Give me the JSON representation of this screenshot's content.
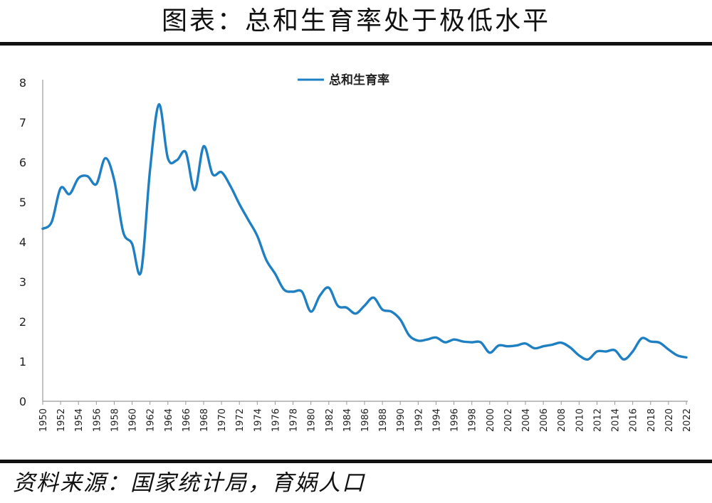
{
  "title": "图表：总和生育率处于极低水平",
  "source": "资料来源：国家统计局，育娲人口",
  "colors": {
    "line": "#1f7fc3",
    "axis": "#999999",
    "rule": "#111111"
  },
  "chart_data": {
    "type": "line",
    "title": "图表：总和生育率处于极低水平",
    "xlabel": "",
    "ylabel": "",
    "ylim": [
      0,
      8
    ],
    "yticks": [
      0,
      1,
      2,
      3,
      4,
      5,
      6,
      7,
      8
    ],
    "xlim": [
      1950,
      2022
    ],
    "xticks": [
      1950,
      1952,
      1954,
      1956,
      1958,
      1960,
      1962,
      1964,
      1966,
      1968,
      1970,
      1972,
      1974,
      1976,
      1978,
      1980,
      1982,
      1984,
      1986,
      1988,
      1990,
      1992,
      1994,
      1996,
      1998,
      2000,
      2002,
      2004,
      2006,
      2008,
      2010,
      2012,
      2014,
      2016,
      2018,
      2020,
      2022
    ],
    "grid": false,
    "legend_position": "top-center",
    "series": [
      {
        "name": "总和生育率",
        "x": [
          1950,
          1951,
          1952,
          1953,
          1954,
          1955,
          1956,
          1957,
          1958,
          1959,
          1960,
          1961,
          1962,
          1963,
          1964,
          1965,
          1966,
          1967,
          1968,
          1969,
          1970,
          1971,
          1972,
          1973,
          1974,
          1975,
          1976,
          1977,
          1978,
          1979,
          1980,
          1981,
          1982,
          1983,
          1984,
          1985,
          1986,
          1987,
          1988,
          1989,
          1990,
          1991,
          1992,
          1993,
          1994,
          1995,
          1996,
          1997,
          1998,
          1999,
          2000,
          2001,
          2002,
          2003,
          2004,
          2005,
          2006,
          2007,
          2008,
          2009,
          2010,
          2011,
          2012,
          2013,
          2014,
          2015,
          2016,
          2017,
          2018,
          2019,
          2020,
          2021,
          2022
        ],
        "values": [
          4.33,
          4.5,
          5.35,
          5.2,
          5.6,
          5.65,
          5.45,
          6.1,
          5.55,
          4.25,
          3.95,
          3.25,
          5.8,
          7.45,
          6.1,
          6.05,
          6.25,
          5.3,
          6.4,
          5.7,
          5.75,
          5.4,
          4.95,
          4.55,
          4.15,
          3.55,
          3.2,
          2.8,
          2.75,
          2.75,
          2.25,
          2.65,
          2.85,
          2.4,
          2.35,
          2.2,
          2.4,
          2.6,
          2.3,
          2.25,
          2.05,
          1.65,
          1.52,
          1.55,
          1.6,
          1.48,
          1.55,
          1.5,
          1.48,
          1.48,
          1.22,
          1.4,
          1.38,
          1.4,
          1.45,
          1.33,
          1.38,
          1.42,
          1.47,
          1.35,
          1.15,
          1.05,
          1.25,
          1.25,
          1.28,
          1.05,
          1.25,
          1.58,
          1.5,
          1.47,
          1.3,
          1.15,
          1.1
        ]
      }
    ]
  }
}
